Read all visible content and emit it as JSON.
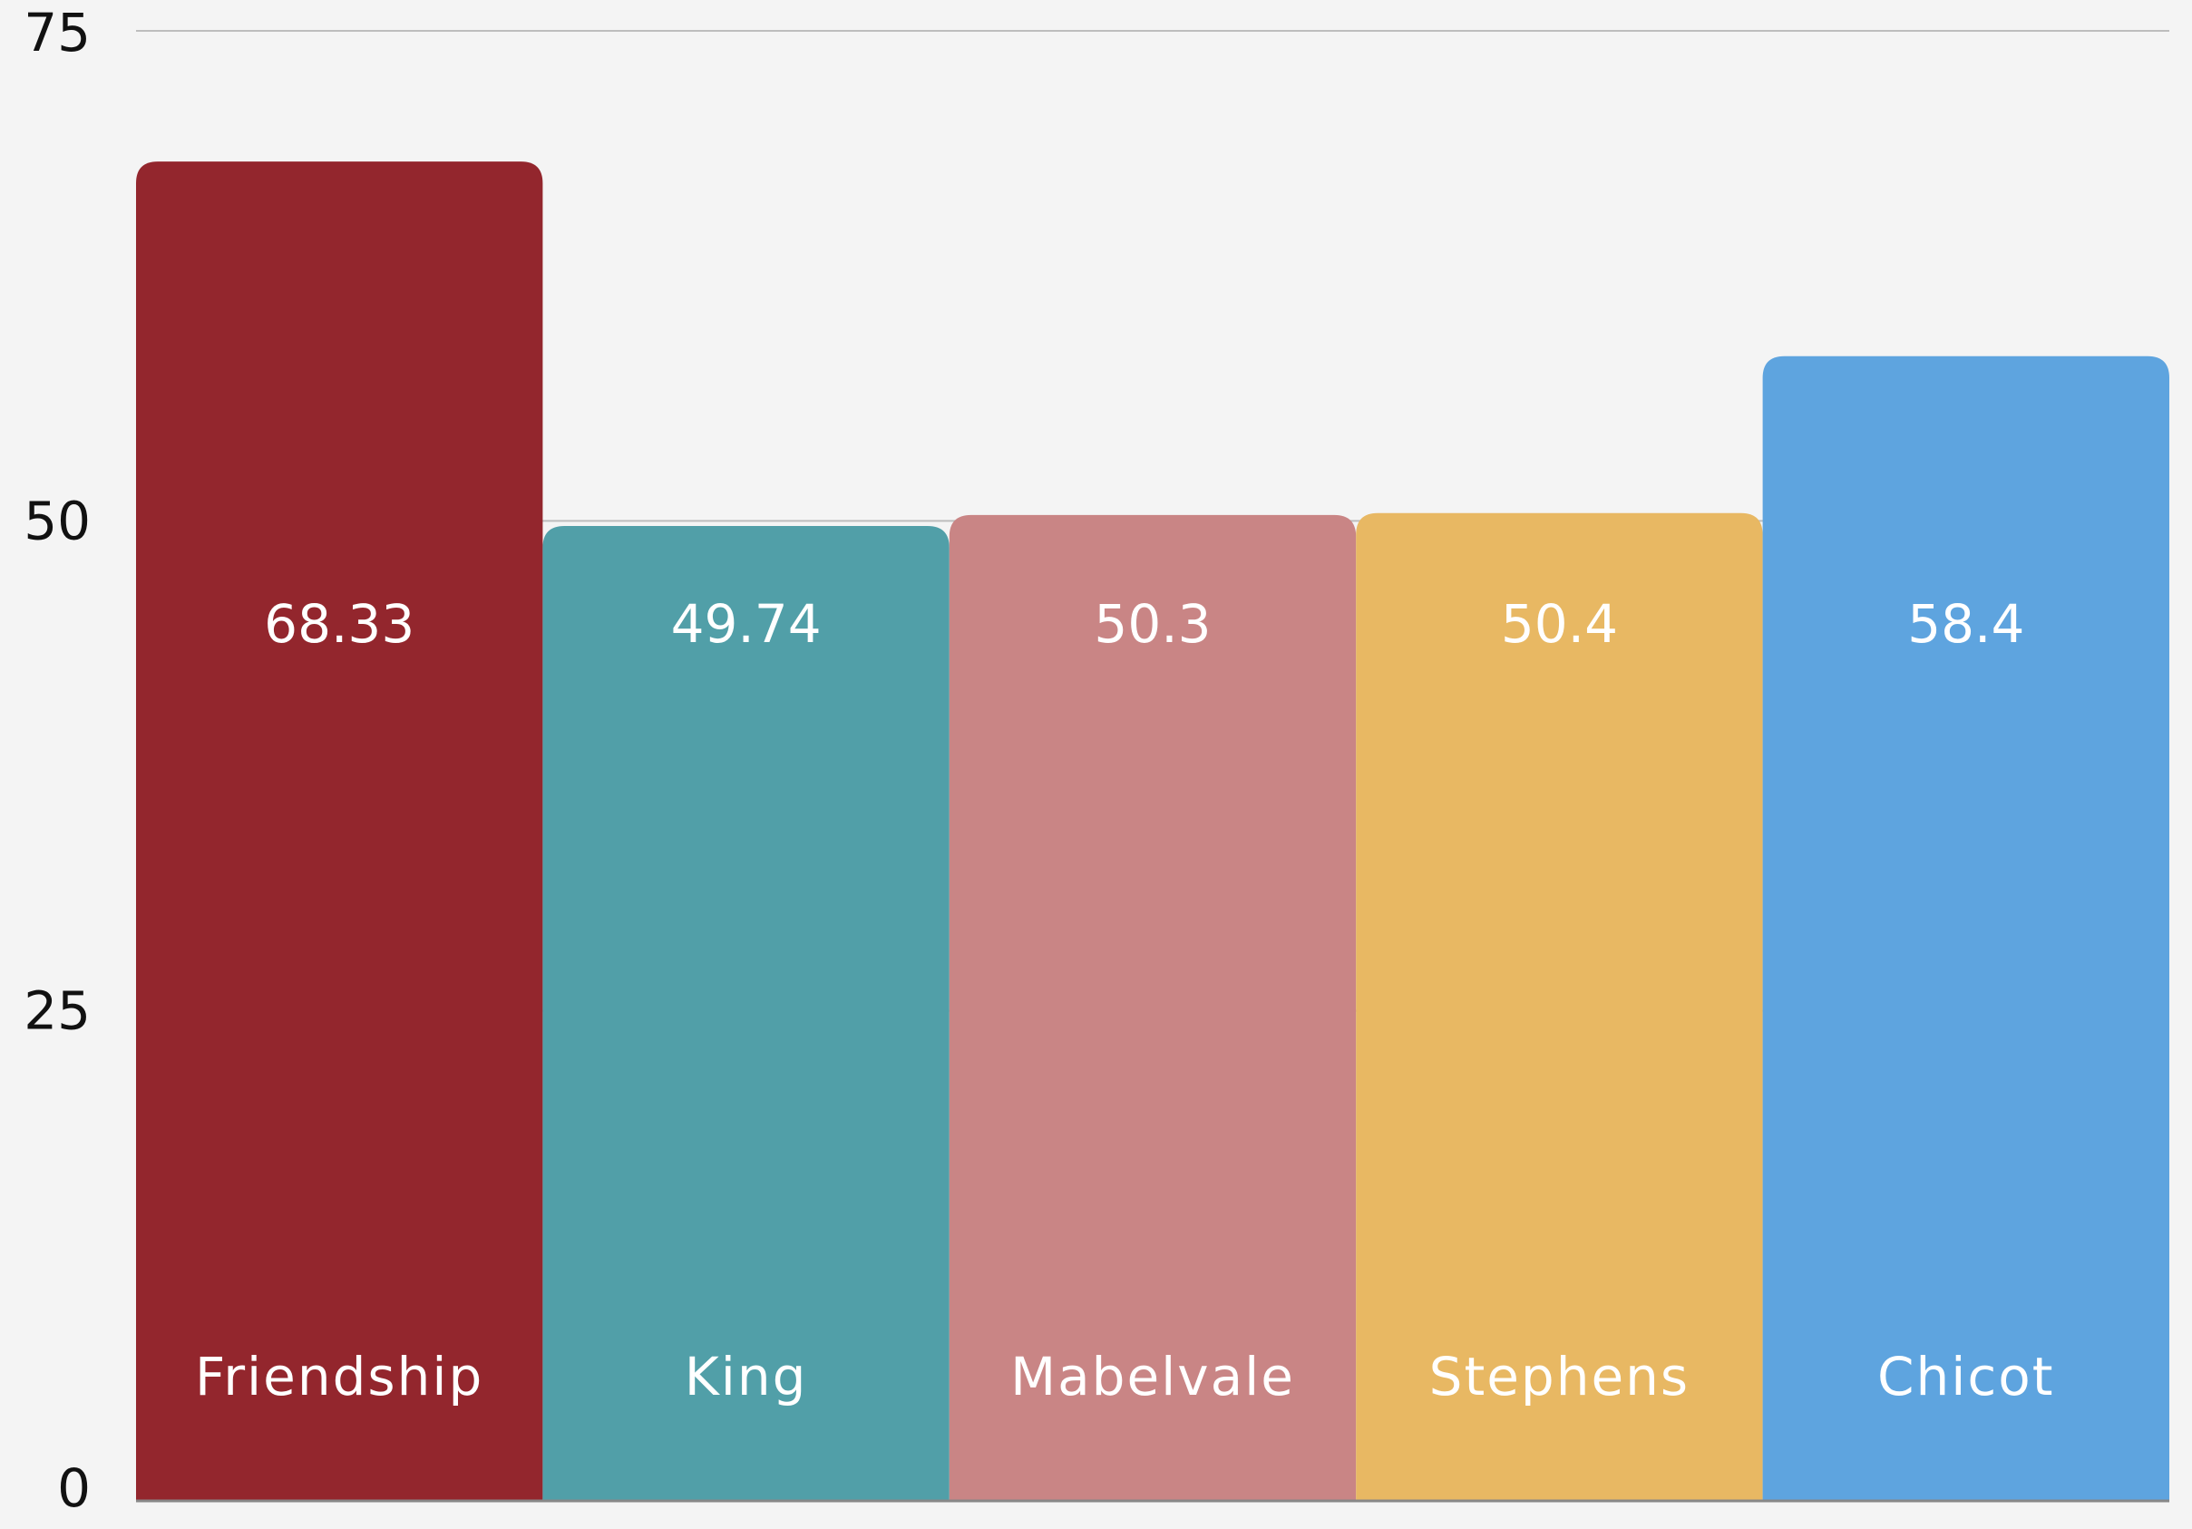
{
  "chart_data": {
    "type": "bar",
    "title": "",
    "xlabel": "",
    "ylabel": "",
    "categories": [
      "Friendship",
      "King",
      "Mabelvale",
      "Stephens",
      "Chicot"
    ],
    "values": [
      68.33,
      49.74,
      50.3,
      50.4,
      58.4
    ],
    "value_labels": [
      "68.33",
      "49.74",
      "50.3",
      "50.4",
      "58.4"
    ],
    "colors": [
      "#93262d",
      "#519fa8",
      "#c98585",
      "#e8b863",
      "#5ea4df"
    ],
    "ylim": [
      0,
      75
    ],
    "yticks": [
      0,
      25,
      50,
      75
    ],
    "ytick_labels": [
      "0",
      "25",
      "50",
      "75"
    ],
    "grid": true,
    "legend": "none",
    "background": "#f4f4f4",
    "gridline_color": "#bdbdbd",
    "axis_color": "#888888"
  }
}
